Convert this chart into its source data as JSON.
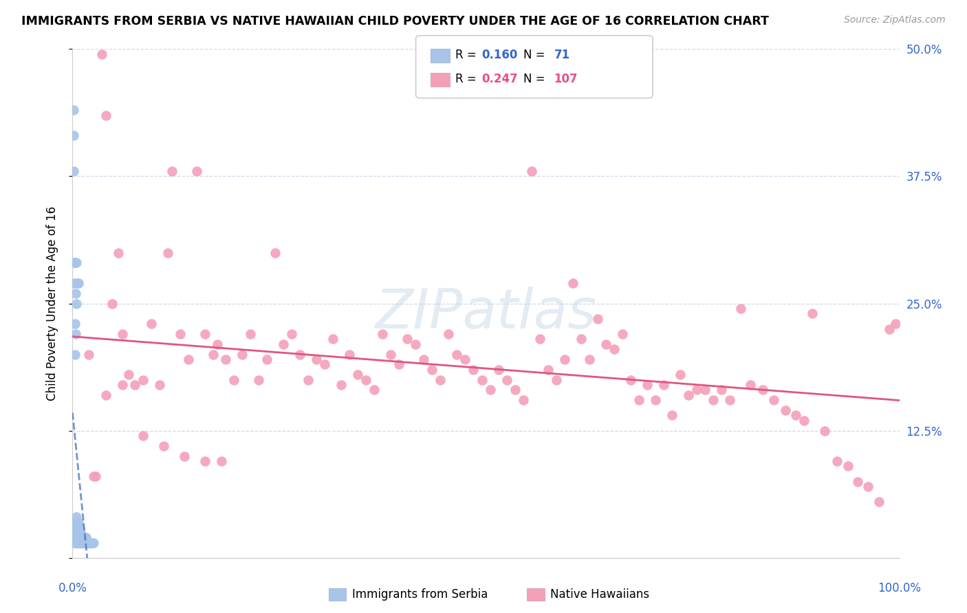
{
  "title": "IMMIGRANTS FROM SERBIA VS NATIVE HAWAIIAN CHILD POVERTY UNDER THE AGE OF 16 CORRELATION CHART",
  "source": "Source: ZipAtlas.com",
  "ylabel": "Child Poverty Under the Age of 16",
  "legend1_label": "Immigrants from Serbia",
  "legend2_label": "Native Hawaiians",
  "r1": 0.16,
  "n1": 71,
  "r2": 0.247,
  "n2": 107,
  "color1": "#a8c4e8",
  "color2": "#f4a0b8",
  "line1_color": "#4472c4",
  "line2_color": "#e05580",
  "watermark": "ZIPatlas",
  "xlim": [
    0.0,
    1.0
  ],
  "ylim": [
    0.0,
    0.5
  ],
  "yticks": [
    0.0,
    0.125,
    0.25,
    0.375,
    0.5
  ],
  "yticklabels_right": [
    "",
    "12.5%",
    "25.0%",
    "37.5%",
    "50.0%"
  ],
  "xtick_left_label": "0.0%",
  "xtick_right_label": "100.0%",
  "background_color": "#ffffff",
  "grid_color": "#d0d8e8",
  "serbia_x": [
    0.002,
    0.002,
    0.002,
    0.003,
    0.003,
    0.003,
    0.003,
    0.003,
    0.004,
    0.004,
    0.004,
    0.004,
    0.004,
    0.005,
    0.005,
    0.005,
    0.005,
    0.005,
    0.006,
    0.006,
    0.006,
    0.006,
    0.007,
    0.007,
    0.007,
    0.007,
    0.008,
    0.008,
    0.008,
    0.008,
    0.009,
    0.009,
    0.009,
    0.01,
    0.01,
    0.01,
    0.011,
    0.011,
    0.012,
    0.012,
    0.013,
    0.013,
    0.014,
    0.014,
    0.015,
    0.015,
    0.016,
    0.016,
    0.017,
    0.018,
    0.019,
    0.02,
    0.021,
    0.022,
    0.023,
    0.024,
    0.025,
    0.003,
    0.004,
    0.005,
    0.001,
    0.001,
    0.001,
    0.002,
    0.002,
    0.003,
    0.003,
    0.004,
    0.005,
    0.006,
    0.007
  ],
  "serbia_y": [
    0.015,
    0.02,
    0.025,
    0.015,
    0.02,
    0.025,
    0.03,
    0.035,
    0.015,
    0.02,
    0.025,
    0.03,
    0.035,
    0.015,
    0.02,
    0.025,
    0.03,
    0.04,
    0.015,
    0.02,
    0.025,
    0.03,
    0.015,
    0.02,
    0.025,
    0.035,
    0.015,
    0.02,
    0.025,
    0.03,
    0.015,
    0.02,
    0.025,
    0.015,
    0.02,
    0.025,
    0.015,
    0.02,
    0.015,
    0.02,
    0.015,
    0.02,
    0.015,
    0.02,
    0.015,
    0.02,
    0.015,
    0.02,
    0.015,
    0.015,
    0.015,
    0.015,
    0.015,
    0.015,
    0.015,
    0.015,
    0.015,
    0.2,
    0.22,
    0.25,
    0.44,
    0.415,
    0.38,
    0.29,
    0.27,
    0.29,
    0.23,
    0.26,
    0.29,
    0.27,
    0.27
  ],
  "hawaii_x": [
    0.012,
    0.02,
    0.028,
    0.035,
    0.04,
    0.048,
    0.055,
    0.06,
    0.068,
    0.075,
    0.085,
    0.095,
    0.105,
    0.115,
    0.12,
    0.13,
    0.14,
    0.15,
    0.16,
    0.17,
    0.175,
    0.185,
    0.195,
    0.205,
    0.215,
    0.225,
    0.235,
    0.245,
    0.255,
    0.265,
    0.275,
    0.285,
    0.295,
    0.305,
    0.315,
    0.325,
    0.335,
    0.345,
    0.355,
    0.365,
    0.375,
    0.385,
    0.395,
    0.405,
    0.415,
    0.425,
    0.435,
    0.445,
    0.455,
    0.465,
    0.475,
    0.485,
    0.495,
    0.505,
    0.515,
    0.525,
    0.535,
    0.545,
    0.555,
    0.565,
    0.575,
    0.585,
    0.595,
    0.605,
    0.615,
    0.625,
    0.635,
    0.645,
    0.655,
    0.665,
    0.675,
    0.685,
    0.695,
    0.705,
    0.715,
    0.725,
    0.735,
    0.745,
    0.755,
    0.765,
    0.775,
    0.785,
    0.795,
    0.808,
    0.82,
    0.835,
    0.848,
    0.862,
    0.875,
    0.885,
    0.895,
    0.91,
    0.925,
    0.938,
    0.95,
    0.962,
    0.975,
    0.988,
    0.995,
    0.025,
    0.04,
    0.06,
    0.085,
    0.11,
    0.135,
    0.16,
    0.18
  ],
  "hawaii_y": [
    0.015,
    0.2,
    0.08,
    0.495,
    0.16,
    0.25,
    0.3,
    0.22,
    0.18,
    0.17,
    0.175,
    0.23,
    0.17,
    0.3,
    0.38,
    0.22,
    0.195,
    0.38,
    0.22,
    0.2,
    0.21,
    0.195,
    0.175,
    0.2,
    0.22,
    0.175,
    0.195,
    0.3,
    0.21,
    0.22,
    0.2,
    0.175,
    0.195,
    0.19,
    0.215,
    0.17,
    0.2,
    0.18,
    0.175,
    0.165,
    0.22,
    0.2,
    0.19,
    0.215,
    0.21,
    0.195,
    0.185,
    0.175,
    0.22,
    0.2,
    0.195,
    0.185,
    0.175,
    0.165,
    0.185,
    0.175,
    0.165,
    0.155,
    0.38,
    0.215,
    0.185,
    0.175,
    0.195,
    0.27,
    0.215,
    0.195,
    0.235,
    0.21,
    0.205,
    0.22,
    0.175,
    0.155,
    0.17,
    0.155,
    0.17,
    0.14,
    0.18,
    0.16,
    0.165,
    0.165,
    0.155,
    0.165,
    0.155,
    0.245,
    0.17,
    0.165,
    0.155,
    0.145,
    0.14,
    0.135,
    0.24,
    0.125,
    0.095,
    0.09,
    0.075,
    0.07,
    0.055,
    0.225,
    0.23,
    0.08,
    0.435,
    0.17,
    0.12,
    0.11,
    0.1,
    0.095,
    0.095
  ]
}
